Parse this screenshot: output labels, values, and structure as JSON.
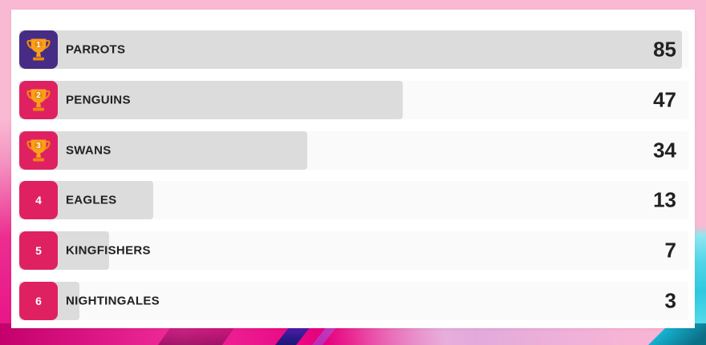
{
  "colors": {
    "background_pink": "#F9B9D2",
    "card": "#FFFFFF",
    "track": "#FAFAFA",
    "bar": "#DCDCDC",
    "badge_first": "#472C85",
    "badge_default": "#E02161",
    "trophy_orange": "#F9A11B",
    "trophy_dark_orange": "#ED8A0A",
    "rank_text": "#FFFFFF",
    "text_dark": "#212121",
    "accent_magenta": "#E6007E",
    "accent_navy": "#2A1A8A",
    "accent_cyan": "#2FC9DF"
  },
  "chart_data": {
    "type": "bar",
    "orientation": "horizontal",
    "title": "",
    "categories": [
      "PARROTS",
      "PENGUINS",
      "SWANS",
      "EAGLES",
      "KINGFISHERS",
      "NIGHTINGALES"
    ],
    "values": [
      85,
      47,
      34,
      13,
      7,
      3
    ],
    "ranks": [
      "1",
      "2",
      "3",
      "4",
      "5",
      "6"
    ],
    "value_range": [
      0,
      85
    ],
    "legend": "none",
    "grid": "off",
    "bar_color": "#DCDCDC",
    "top_ranks_with_trophy": 3
  }
}
